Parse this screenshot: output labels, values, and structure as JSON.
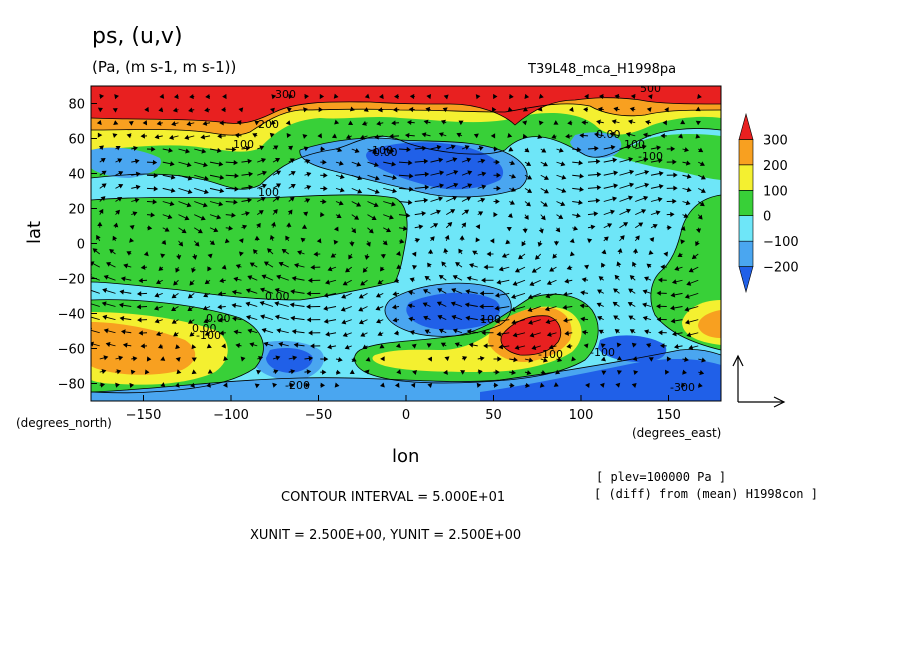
{
  "header": {
    "title": "ps, (u,v)",
    "units": "(Pa, (m s-1, m s-1))",
    "run_id": "T39L48_mca_H1998pa"
  },
  "axes": {
    "ylabel": "lat",
    "xlabel": "lon",
    "yunit": "(degrees_north)",
    "xunit": "(degrees_east)"
  },
  "footer": {
    "contour_interval": "CONTOUR INTERVAL = 5.000E+01",
    "vector_units": "XUNIT = 2.500E+00, YUNIT = 2.500E+00",
    "level": "[ plev=100000 Pa ]",
    "diff": "[ (diff) from (mean) H1998con ]"
  },
  "chart_data": {
    "type": "heatmap",
    "overlay": "vector field (u,v) with contour lines",
    "xlim": [
      -180,
      180
    ],
    "ylim": [
      -90,
      90
    ],
    "xticks": [
      -150,
      -100,
      -50,
      0,
      50,
      100,
      150
    ],
    "yticks": [
      -80,
      -60,
      -40,
      -20,
      0,
      20,
      40,
      60,
      80
    ],
    "colorbar": {
      "levels": [
        -300,
        -200,
        -100,
        0,
        100,
        200,
        300
      ],
      "labels": [
        "300",
        "200",
        "100",
        "0",
        "−100",
        "−200"
      ],
      "colors": [
        "#2060e8",
        "#4aa6f0",
        "#6ee6f8",
        "#38d038",
        "#f4f030",
        "#f8a020",
        "#e82020"
      ]
    },
    "contour_labels": [
      "300",
      "200",
      "100",
      "100",
      "0.00",
      "0.00",
      "0.00",
      "0.00",
      "0.00",
      "-100",
      "-100",
      "-100",
      "100",
      "-200",
      "100",
      "-300",
      "500",
      "-100",
      "-100"
    ],
    "features": [
      {
        "region": "north polar band",
        "lat_range": [
          70,
          90
        ],
        "value": 300
      },
      {
        "region": "southern high",
        "center": [
          70,
          -55
        ],
        "value": 300
      },
      {
        "region": "southwest high",
        "center": [
          -165,
          -58
        ],
        "value": 200
      },
      {
        "region": "north pacific low",
        "center": [
          30,
          40
        ],
        "value": -200
      },
      {
        "region": "southern ocean low",
        "center": [
          30,
          -42
        ],
        "value": -200
      }
    ]
  }
}
